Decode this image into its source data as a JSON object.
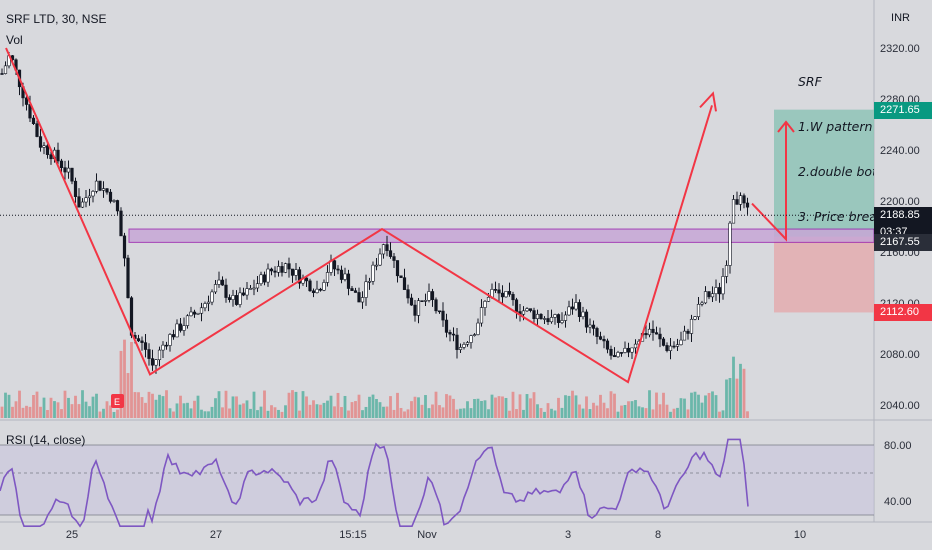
{
  "header": {
    "symbol_line": "SRF LTD, 30, NSE",
    "volume_label": "Vol",
    "currency": "INR"
  },
  "rsi": {
    "label": "RSI (14, close)",
    "upper": 80,
    "lower": 40,
    "ticks": [
      "80.00",
      "40.00"
    ]
  },
  "annotation": {
    "lines": [
      "SRF",
      "1.W pattern",
      "2.double bot",
      "3. Price brea"
    ]
  },
  "price_labels": {
    "target": {
      "text": "2271.65",
      "color": "#089981"
    },
    "last": {
      "text": "2188.85",
      "countdown": "03:37",
      "color": "#131722"
    },
    "level": {
      "text": "2167.55",
      "color": "#2a2e39"
    },
    "stop": {
      "text": "2112.60",
      "color": "#f23645"
    }
  },
  "chart_data": {
    "type": "candlestick",
    "y_axis": {
      "ticks": [
        2320,
        2280,
        2240,
        2200,
        2160,
        2120,
        2080,
        2040
      ],
      "tick_labels": [
        "2320.00",
        "2280.00",
        "2240.00",
        "2200.00",
        "2160.00",
        "2120.00",
        "2080.00",
        "2040.00"
      ]
    },
    "x_axis": {
      "tick_labels": [
        "25",
        "27",
        "15:15",
        "Nov",
        "3",
        "8",
        "10"
      ]
    },
    "resistance_zone": {
      "from": 2167.55,
      "to": 2178
    },
    "last_price": 2188.85,
    "target_price": 2271.65,
    "stop_price": 2112.6,
    "w_pattern_points": [
      2320,
      2064,
      2178,
      2058,
      2275
    ],
    "projection_arrow": {
      "from": 2198,
      "to": 2262
    }
  }
}
